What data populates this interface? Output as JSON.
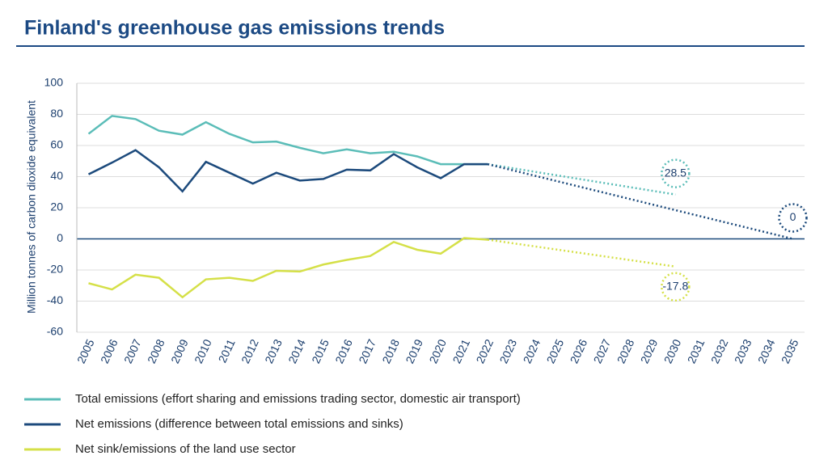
{
  "chart_data": {
    "type": "line",
    "title": "Finland's greenhouse gas emissions trends",
    "y_label": "Million tonnes of carbon dioxide equivalent",
    "categories": [
      "2005",
      "2006",
      "2007",
      "2008",
      "2009",
      "2010",
      "2011",
      "2012",
      "2013",
      "2014",
      "2015",
      "2016",
      "2017",
      "2018",
      "2019",
      "2020",
      "2021",
      "2022",
      "2023",
      "2024",
      "2025",
      "2026",
      "2027",
      "2028",
      "2029",
      "2030",
      "2031",
      "2032",
      "2033",
      "2034",
      "2035"
    ],
    "ylim": [
      -60,
      100
    ],
    "yticks": [
      -60,
      -40,
      -20,
      0,
      20,
      40,
      60,
      80,
      100
    ],
    "grid": true,
    "series": [
      {
        "name": "Total emissions (effort sharing and emissions trading sector, domestic air transport)",
        "color": "#5bbdb8",
        "values": [
          67.5,
          79,
          77,
          69.5,
          67,
          75,
          67.5,
          62,
          62.5,
          58.5,
          55,
          57.5,
          55,
          56,
          53,
          48,
          48,
          48,
          null,
          null,
          null,
          null,
          null,
          null,
          null,
          null,
          null,
          null,
          null,
          null,
          null
        ],
        "projection": [
          null,
          null,
          null,
          null,
          null,
          null,
          null,
          null,
          null,
          null,
          null,
          null,
          null,
          null,
          null,
          null,
          null,
          48,
          null,
          null,
          null,
          null,
          null,
          null,
          null,
          28.5,
          null,
          null,
          null,
          null,
          null
        ]
      },
      {
        "name": "Net emissions (difference between total emissions and sinks)",
        "color": "#1c4a7c",
        "values": [
          41.5,
          49,
          57,
          46,
          30.5,
          49.5,
          42.5,
          35.5,
          42.5,
          37.5,
          38.5,
          44.5,
          44,
          54.5,
          46,
          39,
          48,
          48,
          null,
          null,
          null,
          null,
          null,
          null,
          null,
          null,
          null,
          null,
          null,
          null,
          null
        ],
        "projection": [
          null,
          null,
          null,
          null,
          null,
          null,
          null,
          null,
          null,
          null,
          null,
          null,
          null,
          null,
          null,
          null,
          null,
          48,
          null,
          null,
          null,
          null,
          null,
          null,
          null,
          null,
          null,
          null,
          null,
          null,
          0
        ]
      },
      {
        "name": "Net sink/emissions of the land use sector",
        "color": "#d5e048",
        "values": [
          -28.5,
          -32.5,
          -23,
          -25,
          -37.5,
          -26,
          -25,
          -27,
          -20.5,
          -21,
          -16.5,
          -13.5,
          -11,
          -2,
          -7,
          -9.5,
          0.5,
          -0.5,
          null,
          null,
          null,
          null,
          null,
          null,
          null,
          null,
          null,
          null,
          null,
          null,
          null
        ],
        "projection": [
          null,
          null,
          null,
          null,
          null,
          null,
          null,
          null,
          null,
          null,
          null,
          null,
          null,
          null,
          null,
          null,
          null,
          -0.5,
          null,
          null,
          null,
          null,
          null,
          null,
          null,
          -17.8,
          null,
          null,
          null,
          null,
          null
        ]
      }
    ]
  }
}
